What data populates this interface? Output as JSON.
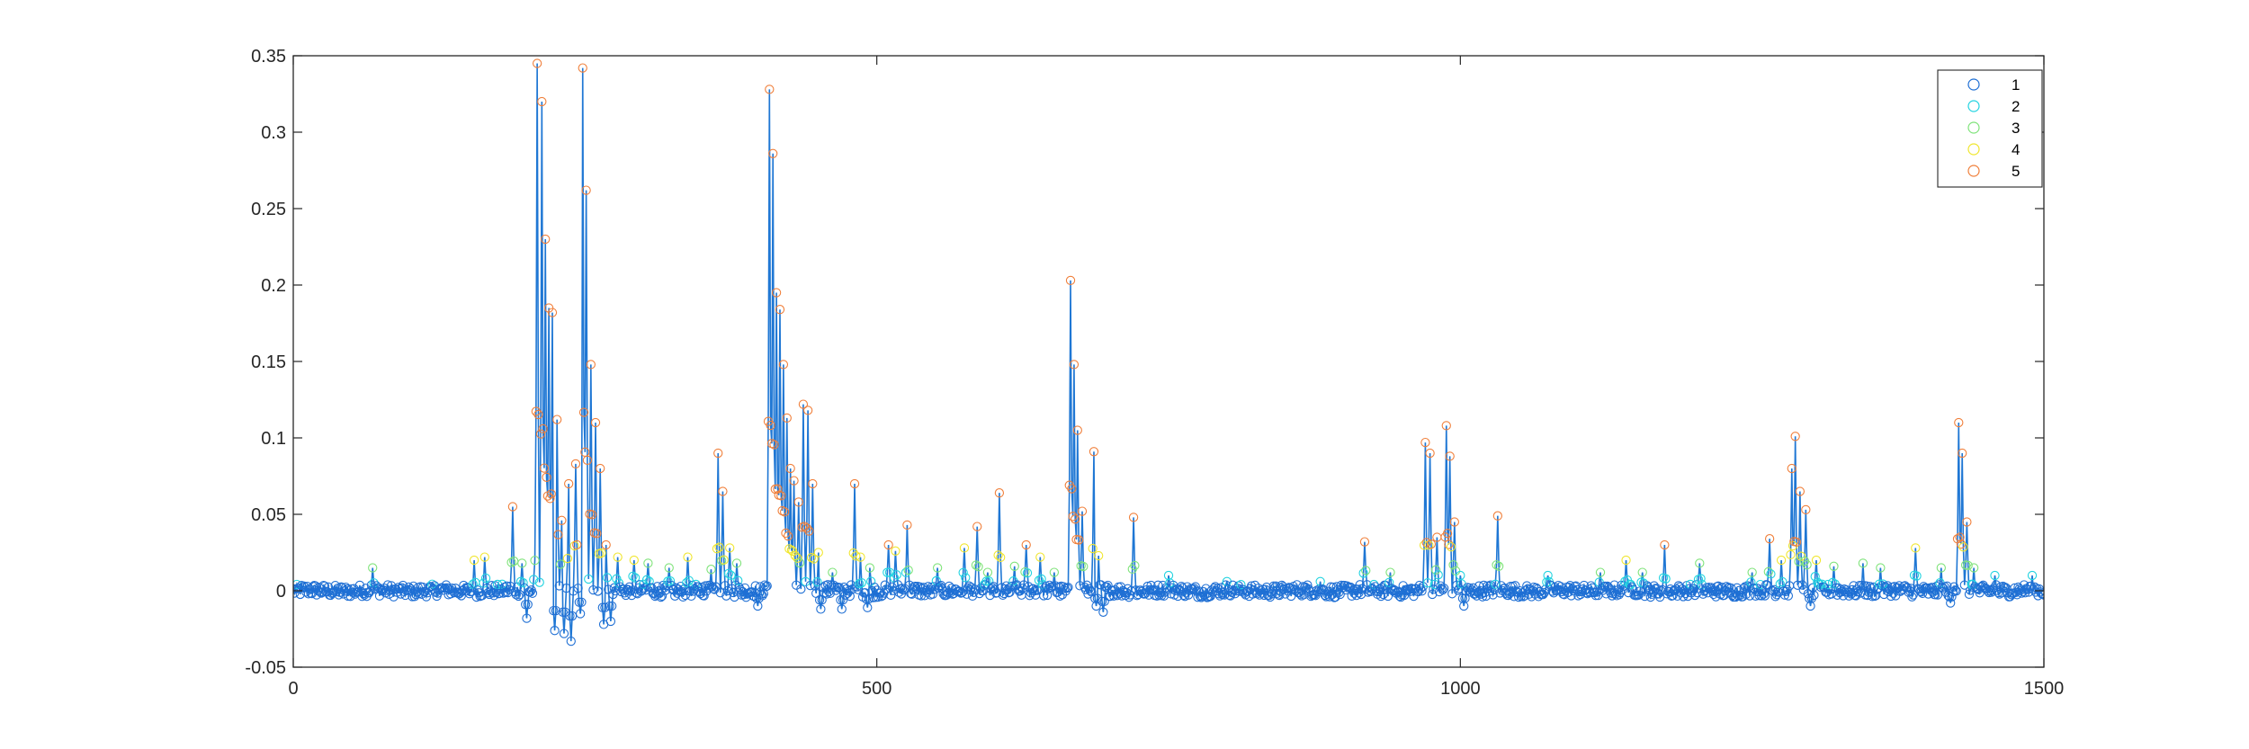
{
  "chart_data": {
    "type": "scatter",
    "title": "",
    "xlabel": "",
    "ylabel": "",
    "xlim": [
      0,
      1500
    ],
    "ylim": [
      -0.05,
      0.35
    ],
    "xticks": [
      0,
      500,
      1000,
      1500
    ],
    "xtick_labels": [
      "0",
      "500",
      "1000",
      "1500"
    ],
    "yticks": [
      -0.05,
      0,
      0.05,
      0.1,
      0.15,
      0.2,
      0.25,
      0.3,
      0.35
    ],
    "ytick_labels": [
      "-0.05",
      "0",
      "0.05",
      "0.1",
      "0.15",
      "0.2",
      "0.25",
      "0.3",
      "0.35"
    ],
    "grid": false,
    "legend_position": "top-right",
    "line_color": "#1f77d4",
    "series": [
      {
        "name": "1",
        "color": "#1f6fd4",
        "threshold": -1
      },
      {
        "name": "2",
        "color": "#22d3e0",
        "threshold": 0.004
      },
      {
        "name": "3",
        "color": "#7fe37a",
        "threshold": 0.012
      },
      {
        "name": "4",
        "color": "#f0e62e",
        "threshold": 0.02
      },
      {
        "name": "5",
        "color": "#f07f3a",
        "threshold": 0.03
      }
    ],
    "peaks": [
      [
        68,
        0.015
      ],
      [
        155,
        0.02
      ],
      [
        164,
        0.022
      ],
      [
        188,
        0.055
      ],
      [
        196,
        0.018
      ],
      [
        207,
        0.016
      ],
      [
        209,
        0.345
      ],
      [
        213,
        0.32
      ],
      [
        216,
        0.23
      ],
      [
        219,
        0.185
      ],
      [
        222,
        0.182
      ],
      [
        226,
        0.112
      ],
      [
        230,
        0.046
      ],
      [
        236,
        0.07
      ],
      [
        242,
        0.083
      ],
      [
        248,
        0.342
      ],
      [
        251,
        0.262
      ],
      [
        255,
        0.148
      ],
      [
        259,
        0.11
      ],
      [
        263,
        0.08
      ],
      [
        268,
        0.03
      ],
      [
        278,
        0.022
      ],
      [
        292,
        0.02
      ],
      [
        304,
        0.018
      ],
      [
        322,
        0.015
      ],
      [
        338,
        0.022
      ],
      [
        358,
        0.014
      ],
      [
        364,
        0.09
      ],
      [
        368,
        0.065
      ],
      [
        374,
        0.028
      ],
      [
        380,
        0.018
      ],
      [
        408,
        0.328
      ],
      [
        411,
        0.286
      ],
      [
        414,
        0.195
      ],
      [
        417,
        0.184
      ],
      [
        420,
        0.148
      ],
      [
        423,
        0.113
      ],
      [
        426,
        0.08
      ],
      [
        429,
        0.072
      ],
      [
        433,
        0.058
      ],
      [
        437,
        0.122
      ],
      [
        441,
        0.118
      ],
      [
        445,
        0.07
      ],
      [
        450,
        0.025
      ],
      [
        462,
        0.012
      ],
      [
        481,
        0.07
      ],
      [
        486,
        0.022
      ],
      [
        494,
        0.015
      ],
      [
        510,
        0.03
      ],
      [
        516,
        0.026
      ],
      [
        526,
        0.043
      ],
      [
        552,
        0.015
      ],
      [
        575,
        0.028
      ],
      [
        586,
        0.042
      ],
      [
        595,
        0.012
      ],
      [
        605,
        0.064
      ],
      [
        618,
        0.016
      ],
      [
        628,
        0.03
      ],
      [
        640,
        0.022
      ],
      [
        652,
        0.012
      ],
      [
        666,
        0.203
      ],
      [
        669,
        0.148
      ],
      [
        672,
        0.105
      ],
      [
        676,
        0.052
      ],
      [
        686,
        0.091
      ],
      [
        689,
        0.062
      ],
      [
        694,
        0.035
      ],
      [
        720,
        0.048
      ],
      [
        750,
        0.01
      ],
      [
        800,
        0.006
      ],
      [
        880,
        0.006
      ],
      [
        918,
        0.032
      ],
      [
        940,
        0.012
      ],
      [
        970,
        0.097
      ],
      [
        974,
        0.09
      ],
      [
        980,
        0.035
      ],
      [
        988,
        0.108
      ],
      [
        991,
        0.088
      ],
      [
        995,
        0.045
      ],
      [
        1000,
        0.01
      ],
      [
        1032,
        0.049
      ],
      [
        1075,
        0.01
      ],
      [
        1120,
        0.012
      ],
      [
        1142,
        0.02
      ],
      [
        1156,
        0.012
      ],
      [
        1175,
        0.03
      ],
      [
        1205,
        0.018
      ],
      [
        1250,
        0.012
      ],
      [
        1265,
        0.034
      ],
      [
        1275,
        0.02
      ],
      [
        1284,
        0.08
      ],
      [
        1287,
        0.101
      ],
      [
        1291,
        0.065
      ],
      [
        1296,
        0.053
      ],
      [
        1305,
        0.02
      ],
      [
        1320,
        0.016
      ],
      [
        1345,
        0.018
      ],
      [
        1360,
        0.015
      ],
      [
        1390,
        0.028
      ],
      [
        1412,
        0.015
      ],
      [
        1427,
        0.11
      ],
      [
        1430,
        0.09
      ],
      [
        1434,
        0.045
      ],
      [
        1440,
        0.015
      ],
      [
        1458,
        0.01
      ],
      [
        1490,
        0.01
      ]
    ],
    "dips": [
      [
        200,
        -0.018
      ],
      [
        224,
        -0.026
      ],
      [
        232,
        -0.028
      ],
      [
        238,
        -0.033
      ],
      [
        246,
        -0.015
      ],
      [
        266,
        -0.022
      ],
      [
        272,
        -0.02
      ],
      [
        398,
        -0.01
      ],
      [
        452,
        -0.012
      ],
      [
        470,
        -0.012
      ],
      [
        492,
        -0.011
      ],
      [
        688,
        -0.01
      ],
      [
        694,
        -0.014
      ],
      [
        1003,
        -0.01
      ],
      [
        1300,
        -0.01
      ],
      [
        1420,
        -0.008
      ]
    ]
  }
}
